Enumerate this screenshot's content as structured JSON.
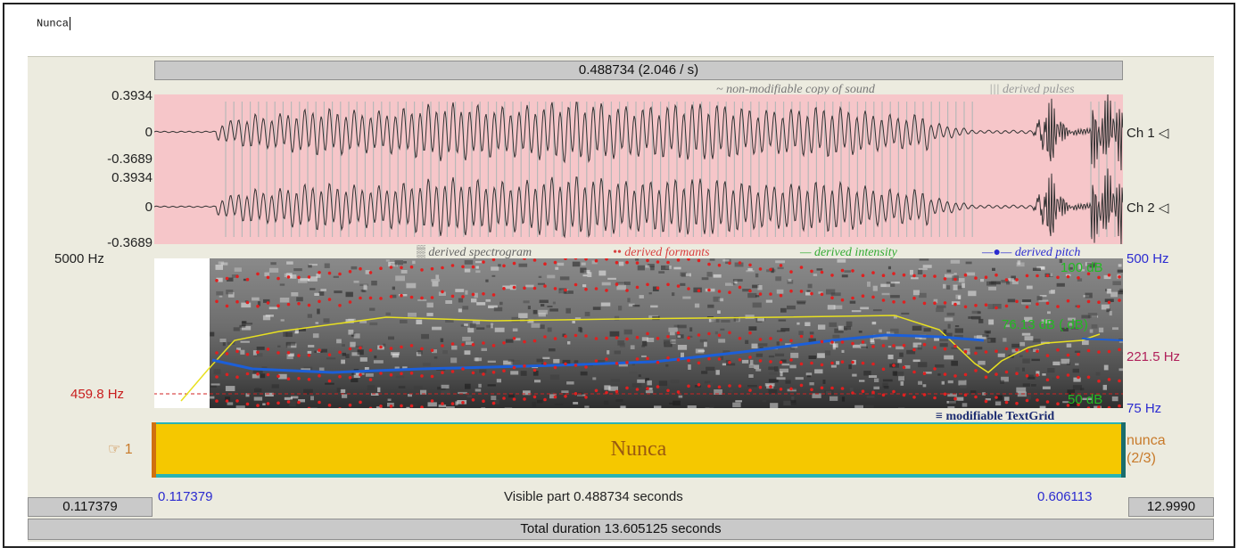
{
  "text_input": {
    "value": "Nunca"
  },
  "top_bar": {
    "selection_label": "0.488734 (2.046 / s)"
  },
  "sound": {
    "legend_sound": "~ non-modifiable copy of sound",
    "legend_pulses": "||| derived pulses",
    "channels": [
      {
        "label": "Ch 1 ◁",
        "ymax": "0.3934",
        "zero": "0",
        "ymin": "-0.3689"
      },
      {
        "label": "Ch 2 ◁",
        "ymax": "0.3934",
        "zero": "0",
        "ymin": "-0.3689"
      }
    ]
  },
  "analysis": {
    "legend_spectrogram": "▒ derived spectrogram",
    "legend_formants": "•• derived formants",
    "legend_intensity": "— derived intensity",
    "legend_pitch": "—●— derived pitch",
    "freq_max": "5000 Hz",
    "cursor_freq": "459.8 Hz",
    "pitch_max": "500 Hz",
    "pitch_mid": "221.5 Hz",
    "pitch_min": "75 Hz",
    "intensity_max": "100 dB",
    "intensity_value": "76.13 dB (.dB)",
    "intensity_min": "50 dB"
  },
  "textgrid": {
    "legend": "≡ modifiable TextGrid",
    "tier_label": "☞ 1",
    "interval_text": "Nunca",
    "tier_name": "nunca",
    "tier_count": "(2/3)"
  },
  "bottom": {
    "left_time": "0.117379",
    "window_start": "0.117379",
    "visible_part": "Visible part 0.488734 seconds",
    "window_end": "0.606113",
    "right_time": "12.9990",
    "total_duration": "Total duration 13.605125 seconds"
  },
  "colors": {
    "waveform_bg": "#f6c6c9",
    "formant": "#e02020",
    "intensity": "#e8e020",
    "pitch": "#1c5fd8",
    "textgrid_interval": "#f5c800",
    "axis_blue": "#2b2bd0",
    "axis_green": "#22bb22",
    "axis_red": "#c81e1e"
  },
  "icons": {
    "tier_pointer": "pointing-hand-icon",
    "speaker": "speaker-icon"
  }
}
